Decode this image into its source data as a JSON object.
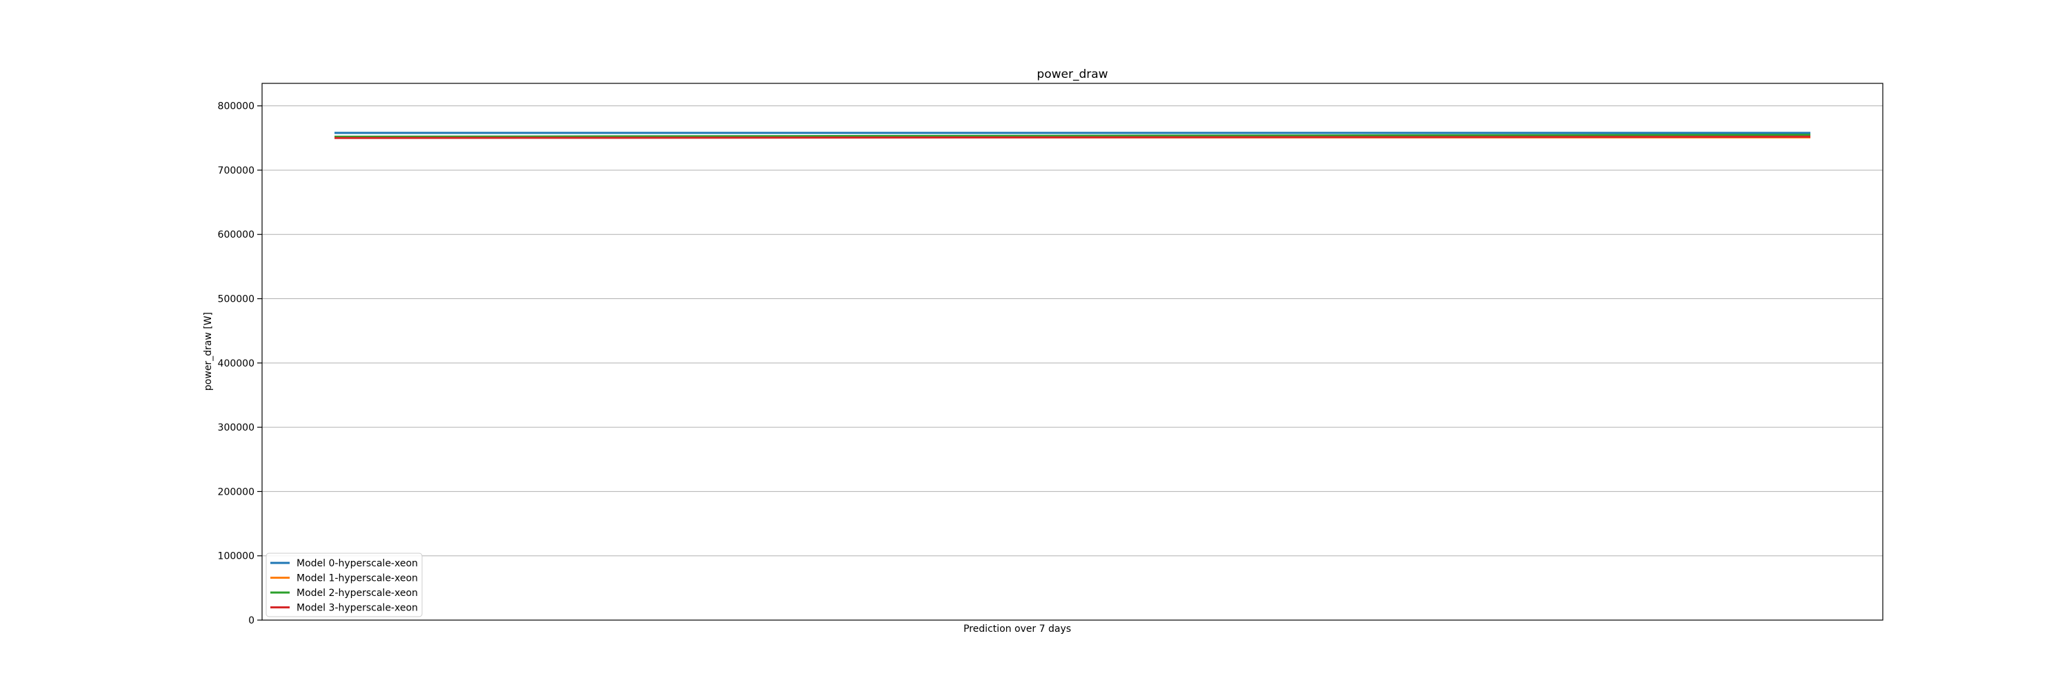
{
  "chart_data": {
    "type": "line",
    "title": "power_draw",
    "xlabel": "Prediction over 7 days",
    "ylabel": "power_draw [W]",
    "ylim": [
      0,
      835000
    ],
    "yticks": [
      0,
      100000,
      200000,
      300000,
      400000,
      500000,
      600000,
      700000,
      800000
    ],
    "grid": "horizontal",
    "legend_position": "lower-left",
    "x": [
      0,
      1
    ],
    "series": [
      {
        "name": "Model 0-hyperscale-xeon",
        "color": "#1f77b4",
        "values": [
          758000,
          758000
        ]
      },
      {
        "name": "Model 1-hyperscale-xeon",
        "color": "#ff7f0e",
        "values": [
          751000,
          751000
        ]
      },
      {
        "name": "Model 2-hyperscale-xeon",
        "color": "#2ca02c",
        "values": [
          752000,
          755000
        ]
      },
      {
        "name": "Model 3-hyperscale-xeon",
        "color": "#d62728",
        "values": [
          750000,
          752000
        ]
      }
    ]
  }
}
